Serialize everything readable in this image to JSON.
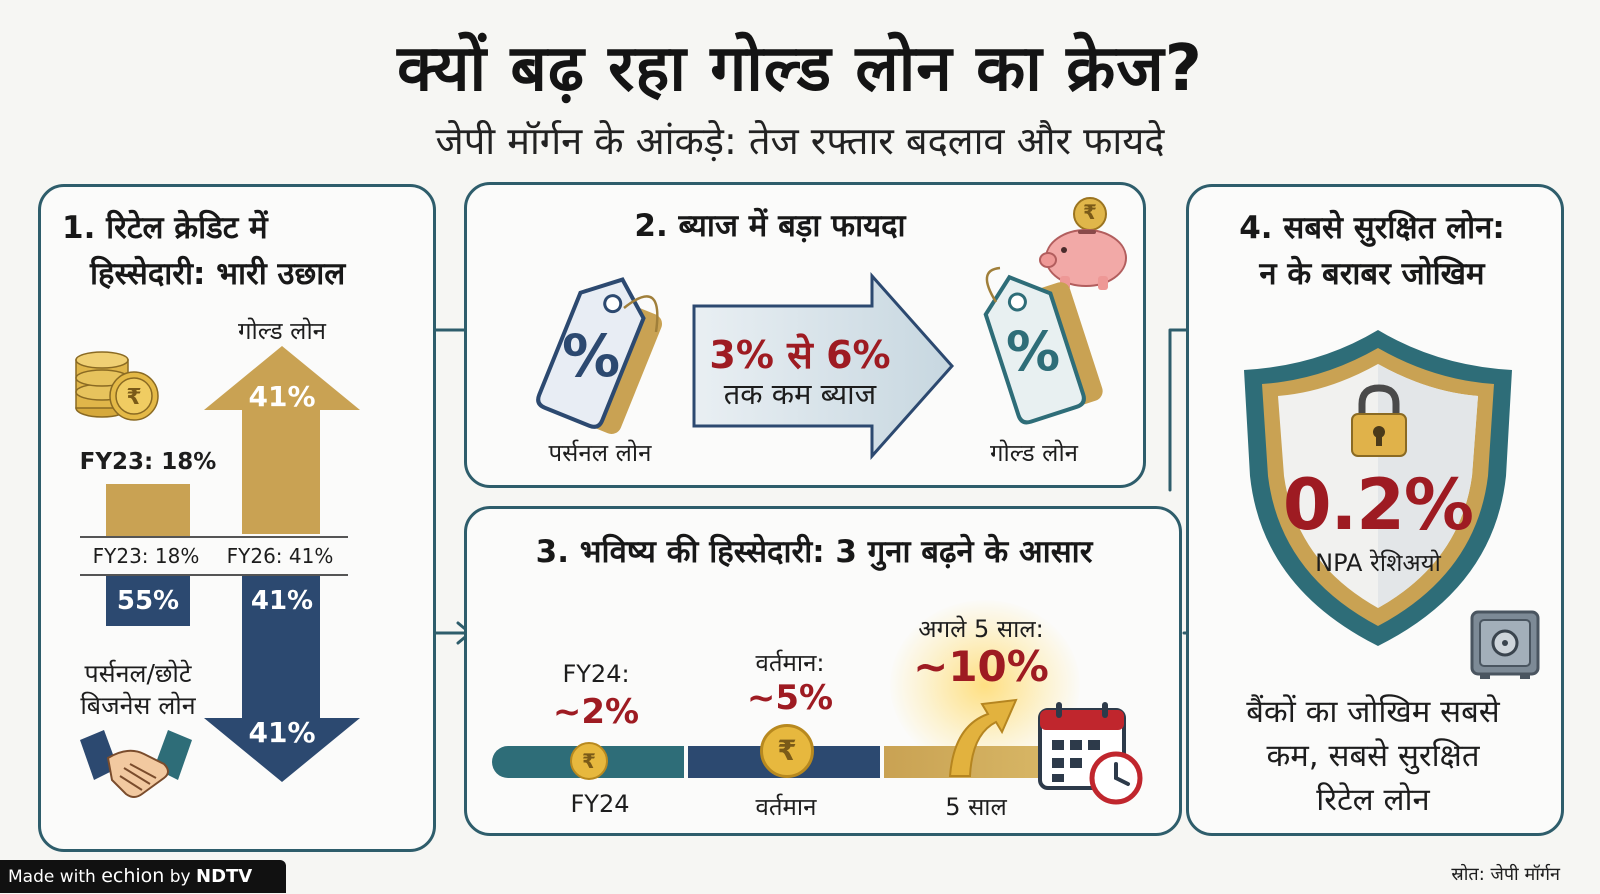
{
  "title": "क्यों बढ़ रहा गोल्ड लोन का क्रेज?",
  "subtitle": "जेपी मॉर्गन के आंकड़े: तेज रफ्तार बदलाव और फायदे",
  "panel1": {
    "heading_line1": "1. रिटेल क्रेडिट में",
    "heading_line2": "हिस्सेदारी: भारी उछाल",
    "gold_label": "गोल्ड लोन",
    "gold_arrow_value": "41%",
    "small_bar_label": "FY23: 18%",
    "axis_left": "FY23: 18%",
    "axis_right": "FY26: 41%",
    "blue_small_value": "55%",
    "blue_arrow_value1": "41%",
    "blue_arrow_value2": "41%",
    "personal_label_line1": "पर्सनल/छोटे",
    "personal_label_line2": "बिजनेस लोन",
    "icons": [
      "coins-rupee-icon",
      "handshake-icon"
    ]
  },
  "panel2": {
    "heading": "2. ब्याज में बड़ा फायदा",
    "arrow_line1_part1": "3% से ",
    "arrow_line1_part2": "6%",
    "arrow_line2": "तक कम ब्याज",
    "left_tag_symbol": "%",
    "right_tag_symbol": "%",
    "left_label": "पर्सनल लोन",
    "right_label": "गोल्ड लोन",
    "piggy_coin_symbol": "₹",
    "icons": [
      "price-tag-icon",
      "piggy-bank-icon"
    ]
  },
  "panel3": {
    "heading": "3. भविष्य की हिस्सेदारी: 3 गुना बढ़ने के आसार",
    "points": [
      {
        "top": "FY24:",
        "value": "~2%",
        "axis": "FY24"
      },
      {
        "top": "वर्तमान:",
        "value": "~5%",
        "axis": "वर्तमान"
      },
      {
        "top": "अगले 5 साल:",
        "value": "~10%",
        "axis": "5 साल"
      }
    ],
    "coin_symbol": "₹",
    "icons": [
      "calendar-clock-icon",
      "rising-arrow-icon"
    ]
  },
  "panel4": {
    "heading_line1": "4. सबसे सुरक्षित लोन:",
    "heading_line2": "न के बराबर जोखिम",
    "npa_value": "0.2%",
    "npa_label": "NPA रेशिअयो",
    "desc_line1": "बैंकों का जोखिम सबसे",
    "desc_line2": "कम, सबसे सुरक्षित",
    "desc_line3": "रिटेल लोन",
    "icons": [
      "shield-icon",
      "padlock-icon",
      "safe-vault-icon"
    ]
  },
  "footer": {
    "made_with": "Made with ",
    "brand": "echion",
    "by": " by ",
    "ndtv": "NDTV"
  },
  "source": "स्रोत: जेपी मॉर्गन",
  "colors": {
    "gold": "#c8a24e",
    "navy": "#2c4970",
    "teal": "#2e6d78",
    "red": "#9e1b22",
    "panel_border": "#2e5d6b"
  }
}
